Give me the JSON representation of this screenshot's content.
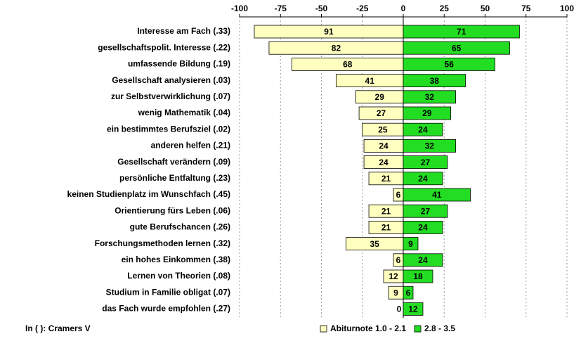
{
  "chart_data": {
    "type": "diverging-bar",
    "categories": [
      "Interesse am Fach (.33)",
      "gesellschaftspolit. Interesse (.22)",
      "umfassende Bildung (.19)",
      "Gesellschaft analysieren (.03)",
      "zur Selbstverwirklichung (.07)",
      "wenig Mathematik (.04)",
      "ein bestimmtes Berufsziel (.02)",
      "anderen helfen (.21)",
      "Gesellschaft verändern (.09)",
      "persönliche Entfaltung (.23)",
      "keinen Studienplatz im Wunschfach (.45)",
      "Orientierung fürs Leben (.06)",
      "gute Berufschancen (.26)",
      "Forschungsmethoden lernen (.32)",
      "ein hohes Einkommen (.38)",
      "Lernen von Theorien (.08)",
      "Studium in Familie obligat (.07)",
      "das Fach wurde empfohlen (.27)"
    ],
    "series": [
      {
        "name": "Abiturnote 1.0 - 2.1",
        "color": "#ffffc0",
        "values": [
          -91,
          -82,
          -68,
          -41,
          -29,
          -27,
          -25,
          -24,
          -24,
          -21,
          -6,
          -21,
          -21,
          -35,
          -6,
          -12,
          -9,
          0
        ],
        "value_labels": [
          "91",
          "82",
          "68",
          "41",
          "29",
          "27",
          "25",
          "24",
          "24",
          "21",
          "6",
          "21",
          "21",
          "35",
          "6",
          "12",
          "9",
          "0"
        ]
      },
      {
        "name": "2.8 - 3.5",
        "color": "#22dd22",
        "values": [
          71,
          65,
          56,
          38,
          32,
          29,
          24,
          32,
          27,
          24,
          41,
          27,
          24,
          9,
          24,
          18,
          6,
          12
        ]
      }
    ],
    "xlim": [
      -100,
      100
    ],
    "xticks": [
      -100,
      -75,
      -50,
      -25,
      0,
      25,
      50,
      75,
      100
    ],
    "grid": true,
    "note": "In ( ): Cramers V",
    "legend": "bottom"
  }
}
